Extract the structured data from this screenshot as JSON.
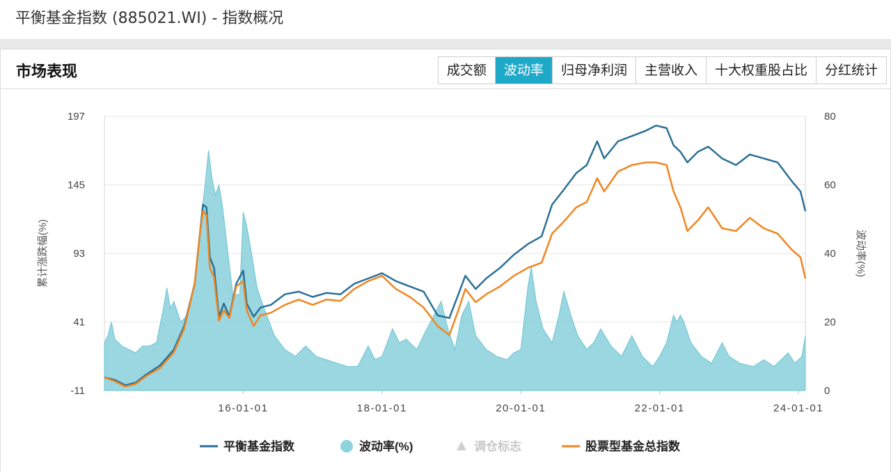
{
  "page": {
    "title": "平衡基金指数 (885021.WI) - 指数概况"
  },
  "section": {
    "title": "市场表现"
  },
  "tabs": [
    {
      "label": "成交额",
      "active": false
    },
    {
      "label": "波动率",
      "active": true
    },
    {
      "label": "归母净利润",
      "active": false
    },
    {
      "label": "主营收入",
      "active": false
    },
    {
      "label": "十大权重股占比",
      "active": false
    },
    {
      "label": "分红统计",
      "active": false
    }
  ],
  "colors": {
    "accent": "#1fa9c9",
    "index_line": "#2a6f97",
    "stock_fund_line": "#f0851f",
    "volatility_area": "#8fd3dd"
  },
  "chart_data": {
    "type": "line",
    "title": "",
    "y_left_label": "累计涨跌幅(%)",
    "y_right_label": "波动率(%)",
    "y_left_range": [
      -11,
      197
    ],
    "y_left_ticks": [
      "197",
      "145",
      "93",
      "41",
      "-11"
    ],
    "y_right_range": [
      0,
      80
    ],
    "y_right_ticks": [
      "80",
      "60",
      "40",
      "20",
      "0"
    ],
    "x_range": [
      2014.0,
      2024.1
    ],
    "x_ticks": [
      {
        "label": "16-01-01",
        "x": 2016.0
      },
      {
        "label": "18-01-01",
        "x": 2018.0
      },
      {
        "label": "20-01-01",
        "x": 2020.0
      },
      {
        "label": "22-01-01",
        "x": 2022.0
      },
      {
        "label": "24-01-01",
        "x": 2024.0
      }
    ],
    "grid": true,
    "legend_position": "bottom",
    "legend": [
      {
        "label": "平衡基金指数",
        "symbol": "line",
        "color": "#2a6f97"
      },
      {
        "label": "波动率(%)",
        "symbol": "circle",
        "color": "#8fd3dd"
      },
      {
        "label": "调仓标志",
        "symbol": "triangle",
        "color": "#cfcfcf"
      },
      {
        "label": "股票型基金总指数",
        "symbol": "line",
        "color": "#f0851f"
      }
    ],
    "series": [
      {
        "name": "平衡基金指数",
        "axis": "left",
        "kind": "line",
        "color": "#2a6f97",
        "points": [
          [
            2014.0,
            -1
          ],
          [
            2014.15,
            -3
          ],
          [
            2014.3,
            -7
          ],
          [
            2014.45,
            -5
          ],
          [
            2014.6,
            1
          ],
          [
            2014.8,
            8
          ],
          [
            2015.0,
            20
          ],
          [
            2015.15,
            38
          ],
          [
            2015.3,
            70
          ],
          [
            2015.38,
            110
          ],
          [
            2015.42,
            130
          ],
          [
            2015.47,
            128
          ],
          [
            2015.52,
            90
          ],
          [
            2015.58,
            82
          ],
          [
            2015.65,
            45
          ],
          [
            2015.72,
            55
          ],
          [
            2015.8,
            45
          ],
          [
            2015.9,
            70
          ],
          [
            2016.0,
            80
          ],
          [
            2016.05,
            55
          ],
          [
            2016.15,
            45
          ],
          [
            2016.25,
            52
          ],
          [
            2016.4,
            54
          ],
          [
            2016.6,
            62
          ],
          [
            2016.8,
            64
          ],
          [
            2017.0,
            60
          ],
          [
            2017.2,
            63
          ],
          [
            2017.4,
            62
          ],
          [
            2017.6,
            70
          ],
          [
            2017.8,
            74
          ],
          [
            2018.0,
            78
          ],
          [
            2018.2,
            72
          ],
          [
            2018.4,
            68
          ],
          [
            2018.6,
            64
          ],
          [
            2018.8,
            46
          ],
          [
            2018.97,
            44
          ],
          [
            2019.1,
            62
          ],
          [
            2019.2,
            76
          ],
          [
            2019.35,
            66
          ],
          [
            2019.5,
            74
          ],
          [
            2019.7,
            82
          ],
          [
            2019.9,
            92
          ],
          [
            2020.1,
            100
          ],
          [
            2020.3,
            106
          ],
          [
            2020.45,
            130
          ],
          [
            2020.6,
            140
          ],
          [
            2020.8,
            154
          ],
          [
            2020.95,
            160
          ],
          [
            2021.1,
            178
          ],
          [
            2021.2,
            165
          ],
          [
            2021.4,
            178
          ],
          [
            2021.6,
            182
          ],
          [
            2021.8,
            186
          ],
          [
            2021.95,
            190
          ],
          [
            2022.1,
            188
          ],
          [
            2022.2,
            175
          ],
          [
            2022.3,
            170
          ],
          [
            2022.4,
            162
          ],
          [
            2022.55,
            170
          ],
          [
            2022.7,
            174
          ],
          [
            2022.9,
            165
          ],
          [
            2023.1,
            160
          ],
          [
            2023.3,
            168
          ],
          [
            2023.5,
            165
          ],
          [
            2023.7,
            162
          ],
          [
            2023.9,
            148
          ],
          [
            2024.03,
            140
          ],
          [
            2024.1,
            125
          ]
        ]
      },
      {
        "name": "股票型基金总指数",
        "axis": "left",
        "kind": "line",
        "color": "#f0851f",
        "points": [
          [
            2014.0,
            -1
          ],
          [
            2014.15,
            -4
          ],
          [
            2014.3,
            -8
          ],
          [
            2014.45,
            -6
          ],
          [
            2014.6,
            0
          ],
          [
            2014.8,
            6
          ],
          [
            2015.0,
            18
          ],
          [
            2015.15,
            36
          ],
          [
            2015.3,
            70
          ],
          [
            2015.38,
            110
          ],
          [
            2015.42,
            125
          ],
          [
            2015.47,
            122
          ],
          [
            2015.52,
            82
          ],
          [
            2015.58,
            75
          ],
          [
            2015.65,
            42
          ],
          [
            2015.72,
            50
          ],
          [
            2015.8,
            44
          ],
          [
            2015.9,
            68
          ],
          [
            2016.0,
            72
          ],
          [
            2016.05,
            50
          ],
          [
            2016.15,
            38
          ],
          [
            2016.25,
            46
          ],
          [
            2016.4,
            48
          ],
          [
            2016.6,
            54
          ],
          [
            2016.8,
            58
          ],
          [
            2017.0,
            54
          ],
          [
            2017.2,
            58
          ],
          [
            2017.4,
            57
          ],
          [
            2017.6,
            66
          ],
          [
            2017.8,
            72
          ],
          [
            2018.0,
            76
          ],
          [
            2018.2,
            66
          ],
          [
            2018.4,
            60
          ],
          [
            2018.6,
            52
          ],
          [
            2018.8,
            38
          ],
          [
            2018.97,
            31
          ],
          [
            2019.1,
            50
          ],
          [
            2019.2,
            66
          ],
          [
            2019.35,
            56
          ],
          [
            2019.5,
            62
          ],
          [
            2019.7,
            68
          ],
          [
            2019.9,
            76
          ],
          [
            2020.1,
            82
          ],
          [
            2020.3,
            86
          ],
          [
            2020.45,
            108
          ],
          [
            2020.6,
            116
          ],
          [
            2020.8,
            128
          ],
          [
            2020.95,
            132
          ],
          [
            2021.1,
            150
          ],
          [
            2021.2,
            140
          ],
          [
            2021.4,
            155
          ],
          [
            2021.6,
            160
          ],
          [
            2021.8,
            162
          ],
          [
            2021.95,
            162
          ],
          [
            2022.1,
            160
          ],
          [
            2022.2,
            140
          ],
          [
            2022.3,
            128
          ],
          [
            2022.4,
            110
          ],
          [
            2022.55,
            118
          ],
          [
            2022.7,
            128
          ],
          [
            2022.9,
            112
          ],
          [
            2023.1,
            110
          ],
          [
            2023.3,
            120
          ],
          [
            2023.5,
            112
          ],
          [
            2023.7,
            108
          ],
          [
            2023.9,
            96
          ],
          [
            2024.03,
            90
          ],
          [
            2024.1,
            74
          ]
        ]
      },
      {
        "name": "波动率(%)",
        "axis": "right",
        "kind": "area",
        "color": "#8fd3dd",
        "points": [
          [
            2014.0,
            14
          ],
          [
            2014.05,
            16
          ],
          [
            2014.1,
            20
          ],
          [
            2014.15,
            15
          ],
          [
            2014.25,
            13
          ],
          [
            2014.35,
            12
          ],
          [
            2014.45,
            11
          ],
          [
            2014.55,
            13
          ],
          [
            2014.65,
            13
          ],
          [
            2014.75,
            14
          ],
          [
            2014.85,
            24
          ],
          [
            2014.9,
            30
          ],
          [
            2014.95,
            24
          ],
          [
            2015.0,
            26
          ],
          [
            2015.1,
            20
          ],
          [
            2015.2,
            22
          ],
          [
            2015.3,
            32
          ],
          [
            2015.38,
            48
          ],
          [
            2015.45,
            60
          ],
          [
            2015.5,
            70
          ],
          [
            2015.55,
            62
          ],
          [
            2015.6,
            57
          ],
          [
            2015.65,
            60
          ],
          [
            2015.7,
            54
          ],
          [
            2015.78,
            40
          ],
          [
            2015.85,
            28
          ],
          [
            2015.95,
            28
          ],
          [
            2016.0,
            52
          ],
          [
            2016.05,
            48
          ],
          [
            2016.12,
            40
          ],
          [
            2016.2,
            30
          ],
          [
            2016.3,
            24
          ],
          [
            2016.45,
            16
          ],
          [
            2016.6,
            12
          ],
          [
            2016.75,
            10
          ],
          [
            2016.9,
            13
          ],
          [
            2017.05,
            10
          ],
          [
            2017.2,
            9
          ],
          [
            2017.35,
            8
          ],
          [
            2017.5,
            7
          ],
          [
            2017.65,
            7
          ],
          [
            2017.8,
            13
          ],
          [
            2017.9,
            9
          ],
          [
            2018.0,
            10
          ],
          [
            2018.15,
            18
          ],
          [
            2018.25,
            14
          ],
          [
            2018.35,
            15
          ],
          [
            2018.5,
            12
          ],
          [
            2018.62,
            17
          ],
          [
            2018.75,
            22
          ],
          [
            2018.85,
            26
          ],
          [
            2018.95,
            18
          ],
          [
            2019.05,
            12
          ],
          [
            2019.15,
            22
          ],
          [
            2019.25,
            26
          ],
          [
            2019.35,
            16
          ],
          [
            2019.5,
            12
          ],
          [
            2019.65,
            10
          ],
          [
            2019.8,
            9
          ],
          [
            2019.9,
            11
          ],
          [
            2020.0,
            12
          ],
          [
            2020.1,
            30
          ],
          [
            2020.15,
            36
          ],
          [
            2020.22,
            26
          ],
          [
            2020.32,
            18
          ],
          [
            2020.45,
            14
          ],
          [
            2020.55,
            22
          ],
          [
            2020.62,
            29
          ],
          [
            2020.72,
            22
          ],
          [
            2020.82,
            16
          ],
          [
            2020.95,
            12
          ],
          [
            2021.05,
            14
          ],
          [
            2021.15,
            18
          ],
          [
            2021.3,
            13
          ],
          [
            2021.45,
            10
          ],
          [
            2021.6,
            16
          ],
          [
            2021.75,
            10
          ],
          [
            2021.9,
            7
          ],
          [
            2022.0,
            10
          ],
          [
            2022.1,
            14
          ],
          [
            2022.2,
            22
          ],
          [
            2022.25,
            20
          ],
          [
            2022.3,
            22
          ],
          [
            2022.35,
            20
          ],
          [
            2022.45,
            14
          ],
          [
            2022.6,
            10
          ],
          [
            2022.75,
            8
          ],
          [
            2022.9,
            14
          ],
          [
            2023.0,
            10
          ],
          [
            2023.15,
            8
          ],
          [
            2023.35,
            7
          ],
          [
            2023.5,
            9
          ],
          [
            2023.65,
            7
          ],
          [
            2023.85,
            11
          ],
          [
            2023.95,
            8
          ],
          [
            2024.05,
            10
          ],
          [
            2024.1,
            16
          ]
        ]
      }
    ]
  }
}
